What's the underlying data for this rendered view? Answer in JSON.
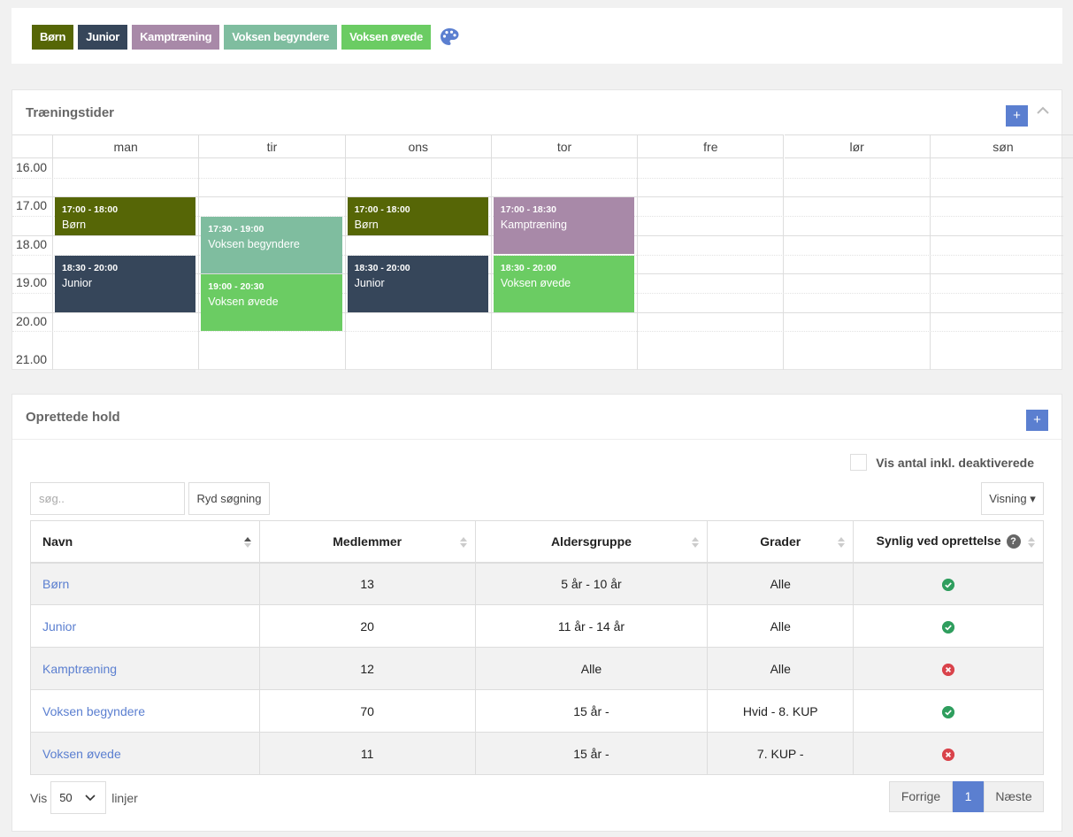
{
  "legend": {
    "tags": [
      {
        "label": "Børn",
        "color": "#566606"
      },
      {
        "label": "Junior",
        "color": "#36465a"
      },
      {
        "label": "Kamptræning",
        "color": "#a889a8"
      },
      {
        "label": "Voksen begyndere",
        "color": "#7fbd9f"
      },
      {
        "label": "Voksen øvede",
        "color": "#6bcc63"
      }
    ],
    "palette_icon": "palette-icon"
  },
  "schedule": {
    "title": "Træningstider",
    "add_label": "+",
    "days": [
      "man",
      "tir",
      "ons",
      "tor",
      "fre",
      "lør",
      "søn"
    ],
    "hours": [
      "16.00",
      "17.00",
      "18.00",
      "19.00",
      "20.00",
      "21.00"
    ],
    "events": [
      {
        "day": 0,
        "start": 17.0,
        "end": 18.0,
        "time": "17:00 - 18:00",
        "name": "Børn",
        "color": "#566606"
      },
      {
        "day": 0,
        "start": 18.5,
        "end": 20.0,
        "time": "18:30 - 20:00",
        "name": "Junior",
        "color": "#36465a"
      },
      {
        "day": 1,
        "start": 17.5,
        "end": 19.0,
        "time": "17:30 - 19:00",
        "name": "Voksen begyndere",
        "color": "#7fbd9f"
      },
      {
        "day": 1,
        "start": 19.0,
        "end": 20.5,
        "time": "19:00 - 20:30",
        "name": "Voksen øvede",
        "color": "#6bcc63"
      },
      {
        "day": 2,
        "start": 17.0,
        "end": 18.0,
        "time": "17:00 - 18:00",
        "name": "Børn",
        "color": "#566606"
      },
      {
        "day": 2,
        "start": 18.5,
        "end": 20.0,
        "time": "18:30 - 20:00",
        "name": "Junior",
        "color": "#36465a"
      },
      {
        "day": 3,
        "start": 17.0,
        "end": 18.5,
        "time": "17:00 - 18:30",
        "name": "Kamptræning",
        "color": "#a889a8"
      },
      {
        "day": 3,
        "start": 18.5,
        "end": 20.0,
        "time": "18:30 - 20:00",
        "name": "Voksen øvede",
        "color": "#6bcc63"
      }
    ]
  },
  "teams": {
    "title": "Oprettede hold",
    "add_label": "+",
    "checkbox_label": "Vis antal inkl. deaktiverede",
    "search_placeholder": "søg..",
    "clear_label": "Ryd søgning",
    "view_label": "Visning ▾",
    "columns": [
      "Navn",
      "Medlemmer",
      "Aldersgruppe",
      "Grader",
      "Synlig ved oprettelse"
    ],
    "help_icon": "?",
    "rows": [
      {
        "name": "Børn",
        "members": "13",
        "age": "5 år - 10 år",
        "grades": "Alle",
        "visible": true
      },
      {
        "name": "Junior",
        "members": "20",
        "age": "11 år - 14 år",
        "grades": "Alle",
        "visible": true
      },
      {
        "name": "Kamptræning",
        "members": "12",
        "age": "Alle",
        "grades": "Alle",
        "visible": false
      },
      {
        "name": "Voksen begyndere",
        "members": "70",
        "age": "15 år -",
        "grades": "Hvid - 8. KUP",
        "visible": true
      },
      {
        "name": "Voksen øvede",
        "members": "11",
        "age": "15 år -",
        "grades": "7. KUP -",
        "visible": false
      }
    ],
    "show_prefix": "Vis",
    "page_size": "50",
    "show_suffix": "linjer",
    "pager": {
      "prev": "Forrige",
      "current": "1",
      "next": "Næste"
    }
  }
}
